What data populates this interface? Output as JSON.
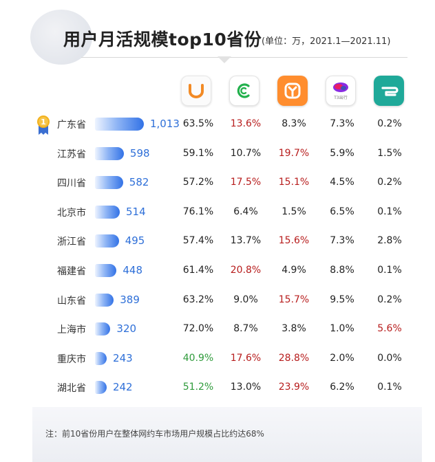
{
  "header": {
    "title": "用户月活规模top10省份",
    "unit_note": "(单位：万，2021.1—2021.11)"
  },
  "apps": [
    {
      "name": "didi-icon",
      "logo_text": ""
    },
    {
      "name": "caocao-icon",
      "logo_text": ""
    },
    {
      "name": "meituan-icon",
      "logo_text": ""
    },
    {
      "name": "t3-icon",
      "logo_text": "T3出行"
    },
    {
      "name": "shouqi-icon",
      "logo_text": ""
    }
  ],
  "colors": {
    "bar_end": "#3272e6",
    "value_text": "#2e6fd8",
    "highlight_red": "#b71c1c",
    "highlight_green": "#2e9a3a"
  },
  "chart_data": {
    "type": "table",
    "title": "用户月活规模top10省份",
    "unit": "(单位：万，2021.1—2021.11)",
    "rank_badge": "1",
    "categories": [
      "广东省",
      "江苏省",
      "四川省",
      "北京市",
      "浙江省",
      "福建省",
      "山东省",
      "上海市",
      "重庆市",
      "湖北省"
    ],
    "values": [
      1013,
      598,
      582,
      514,
      495,
      448,
      389,
      320,
      243,
      242
    ],
    "value_labels": [
      "1,013",
      "598",
      "582",
      "514",
      "495",
      "448",
      "389",
      "320",
      "243",
      "242"
    ],
    "xlim": [
      0,
      1013
    ],
    "rows": [
      [
        "63.5%",
        "13.6%",
        "8.3%",
        "7.3%",
        "0.2%"
      ],
      [
        "59.1%",
        "10.7%",
        "19.7%",
        "5.9%",
        "1.5%"
      ],
      [
        "57.2%",
        "17.5%",
        "15.1%",
        "4.5%",
        "0.2%"
      ],
      [
        "76.1%",
        "6.4%",
        "1.5%",
        "6.5%",
        "0.1%"
      ],
      [
        "57.4%",
        "13.7%",
        "15.6%",
        "7.3%",
        "2.8%"
      ],
      [
        "61.4%",
        "20.8%",
        "4.9%",
        "8.8%",
        "0.1%"
      ],
      [
        "63.2%",
        "9.0%",
        "15.7%",
        "9.5%",
        "0.2%"
      ],
      [
        "72.0%",
        "8.7%",
        "3.8%",
        "1.0%",
        "5.6%"
      ],
      [
        "40.9%",
        "17.6%",
        "28.8%",
        "2.0%",
        "0.0%"
      ],
      [
        "51.2%",
        "13.0%",
        "23.9%",
        "6.2%",
        "0.1%"
      ]
    ],
    "highlights": [
      [
        "n",
        "r",
        "n",
        "n",
        "n"
      ],
      [
        "n",
        "n",
        "r",
        "n",
        "n"
      ],
      [
        "n",
        "r",
        "r",
        "n",
        "n"
      ],
      [
        "n",
        "n",
        "n",
        "n",
        "n"
      ],
      [
        "n",
        "n",
        "r",
        "n",
        "n"
      ],
      [
        "n",
        "r",
        "n",
        "n",
        "n"
      ],
      [
        "n",
        "n",
        "r",
        "n",
        "n"
      ],
      [
        "n",
        "n",
        "n",
        "n",
        "r"
      ],
      [
        "g",
        "r",
        "r",
        "n",
        "n"
      ],
      [
        "g",
        "n",
        "r",
        "n",
        "n"
      ]
    ]
  },
  "footer": {
    "note": "注：前10省份用户在整体网约车市场用户规模占比约达68%"
  }
}
